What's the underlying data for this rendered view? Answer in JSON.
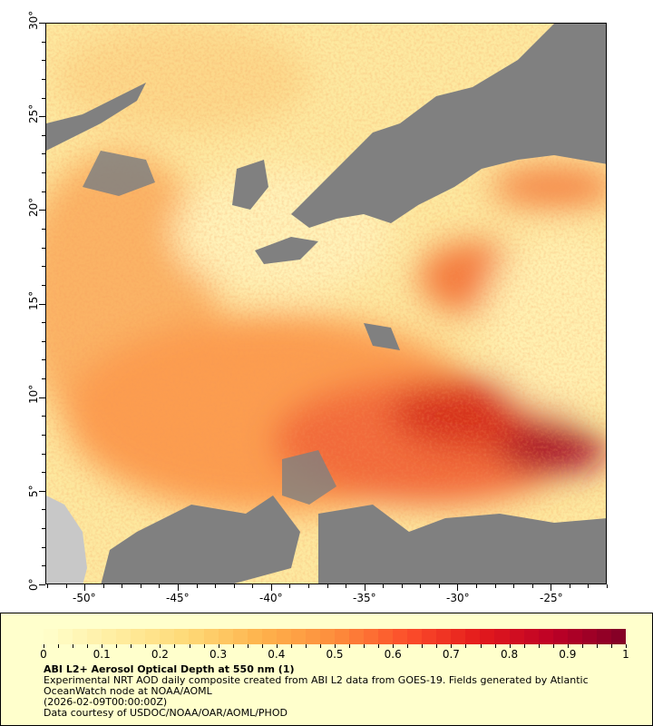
{
  "map": {
    "lat_ticks": [
      "0°",
      "5°",
      "10°",
      "15°",
      "20°",
      "25°",
      "30°"
    ],
    "lon_ticks": [
      "-50°",
      "-45°",
      "-40°",
      "-35°",
      "-30°",
      "-25°"
    ],
    "lat_range": [
      0,
      30
    ],
    "lon_range": [
      -52.1,
      -22.0
    ],
    "colors": {
      "cloud": "#808080",
      "land": "#c8c8c8",
      "background": "#fde9a0"
    }
  },
  "legend": {
    "colorbar_ticks": [
      "0",
      "0.1",
      "0.2",
      "0.3",
      "0.4",
      "0.5",
      "0.6",
      "0.7",
      "0.8",
      "0.9",
      "1"
    ],
    "colorbar_range": [
      0,
      1
    ],
    "colormap_start": "#ffffcc",
    "colormap_mid": "#fd8d3c",
    "colormap_end": "#800026",
    "title": "ABI L2+ Aerosol Optical Depth at 550 nm (1)",
    "description": "Experimental NRT AOD daily composite created from ABI L2 data from GOES-19. Fields generated by Atlantic OceanWatch node at NOAA/AOML",
    "time": "(2026-02-09T00:00:00Z)",
    "credit": "Data courtesy of USDOC/NOAA/OAR/AOML/PHOD"
  }
}
